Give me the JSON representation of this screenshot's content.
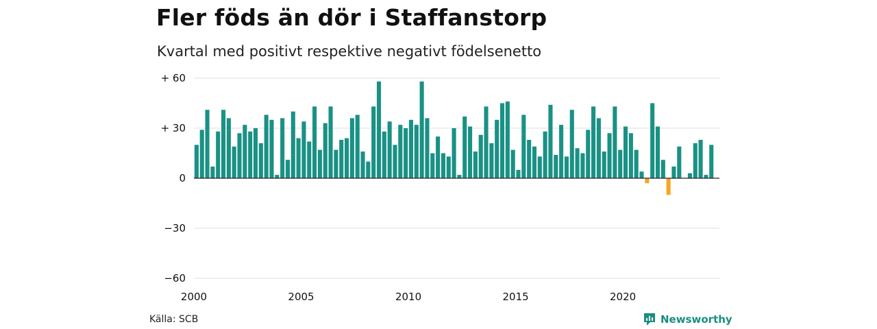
{
  "title": "Fler föds än dör i Staffanstorp",
  "subtitle": "Kvartal med positivt respektive negativt födelsenetto",
  "source": "Källa: SCB",
  "brand": {
    "name": "Newsworthy",
    "icon": "newsworthy-logo-icon"
  },
  "colors": {
    "positive": "#1a9185",
    "negative": "#f5a623",
    "grid": "#dddddd",
    "axis": "#222222"
  },
  "chart_data": {
    "type": "bar",
    "title": "Fler föds än dör i Staffanstorp",
    "subtitle": "Kvartal med positivt respektive negativt födelsenetto",
    "x_start": 2000,
    "x_step": 0.25,
    "xlim": [
      2000,
      2024.5
    ],
    "x_ticks": [
      2000,
      2005,
      2010,
      2015,
      2020
    ],
    "x_tick_labels": [
      "2000",
      "2005",
      "2010",
      "2015",
      "2020"
    ],
    "ylim": [
      -60,
      60
    ],
    "y_ticks": [
      60,
      30,
      0,
      -30,
      -60
    ],
    "y_tick_labels": [
      "+ 60",
      "+ 30",
      "0",
      "−30",
      "−60"
    ],
    "grid": true,
    "values": [
      20,
      29,
      41,
      7,
      28,
      41,
      36,
      19,
      27,
      32,
      28,
      30,
      21,
      38,
      35,
      2,
      36,
      11,
      40,
      24,
      34,
      22,
      43,
      17,
      33,
      43,
      17,
      23,
      24,
      36,
      38,
      16,
      10,
      43,
      58,
      28,
      34,
      20,
      32,
      30,
      35,
      32,
      58,
      36,
      15,
      25,
      15,
      13,
      30,
      2,
      37,
      31,
      16,
      26,
      43,
      21,
      35,
      45,
      46,
      17,
      5,
      38,
      23,
      19,
      13,
      28,
      44,
      14,
      32,
      13,
      41,
      18,
      15,
      29,
      43,
      36,
      16,
      27,
      43,
      17,
      31,
      27,
      17,
      4,
      -3,
      45,
      31,
      11,
      -10,
      7,
      19,
      0,
      3,
      21,
      23,
      2,
      20
    ]
  }
}
